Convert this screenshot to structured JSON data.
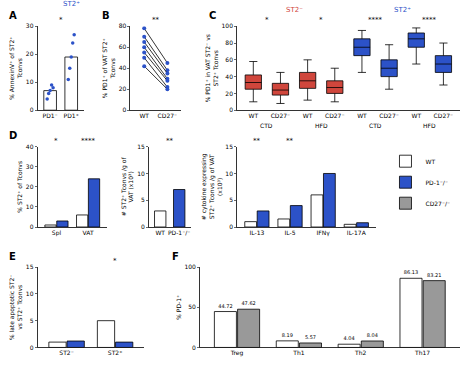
{
  "chart_data": [
    {
      "panel": "A",
      "type": "bar",
      "title": "ST2⁺",
      "categories": [
        "PD1⁻",
        "PD1⁺"
      ],
      "values": [
        7,
        19
      ],
      "colors": [
        "#ffffff",
        "#ffffff"
      ],
      "color": "#2c52c8",
      "points": [
        [
          4,
          6,
          7,
          9,
          8
        ],
        [
          11,
          15,
          19,
          24,
          27
        ]
      ],
      "ylabel": "% AnnexinV⁺ of ST2⁺ Tconvs",
      "ylim": [
        0,
        30
      ],
      "yticks": [
        0,
        10,
        20,
        30
      ],
      "significance": [
        {
          "between": [
            0,
            1
          ],
          "text": "*"
        }
      ]
    },
    {
      "panel": "B",
      "type": "paired",
      "categories": [
        "WT",
        "CD27⁻"
      ],
      "color": "#2c52c8",
      "pairs": [
        [
          78,
          45
        ],
        [
          70,
          38
        ],
        [
          65,
          35
        ],
        [
          60,
          30
        ],
        [
          55,
          28
        ],
        [
          50,
          22
        ],
        [
          42,
          20
        ]
      ],
      "ylabel": "% PD1⁺ of VAT ST2⁺ Tconvs",
      "ylim": [
        0,
        80
      ],
      "yticks": [
        0,
        20,
        40,
        60,
        80
      ],
      "significance": [
        {
          "between": [
            0,
            1
          ],
          "text": "**"
        }
      ]
    },
    {
      "panel": "C",
      "type": "box",
      "categories": [
        "WT",
        "CD27⁻",
        "WT",
        "CD27⁻",
        "WT",
        "CD27⁻",
        "WT",
        "CD27⁻"
      ],
      "colors": [
        "#d0463c",
        "#d0463c",
        "#d0463c",
        "#d0463c",
        "#2c52c8",
        "#2c52c8",
        "#2c52c8",
        "#2c52c8"
      ],
      "boxes": [
        {
          "lower": 10,
          "q1": 25,
          "median": 33,
          "q3": 42,
          "upper": 58
        },
        {
          "lower": 8,
          "q1": 18,
          "median": 24,
          "q3": 32,
          "upper": 45
        },
        {
          "lower": 12,
          "q1": 26,
          "median": 35,
          "q3": 45,
          "upper": 60
        },
        {
          "lower": 10,
          "q1": 20,
          "median": 27,
          "q3": 35,
          "upper": 50
        },
        {
          "lower": 45,
          "q1": 65,
          "median": 75,
          "q3": 85,
          "upper": 95
        },
        {
          "lower": 25,
          "q1": 40,
          "median": 50,
          "q3": 60,
          "upper": 78
        },
        {
          "lower": 55,
          "q1": 75,
          "median": 85,
          "q3": 92,
          "upper": 98
        },
        {
          "lower": 30,
          "q1": 45,
          "median": 55,
          "q3": 65,
          "upper": 80
        }
      ],
      "groups": [
        {
          "text": "CTD",
          "between": [
            0,
            1
          ]
        },
        {
          "text": "HFD",
          "between": [
            2,
            3
          ]
        },
        {
          "text": "CTD",
          "between": [
            4,
            5
          ]
        },
        {
          "text": "HFD",
          "between": [
            6,
            7
          ]
        }
      ],
      "headers": [
        {
          "text": "ST2⁻",
          "between": [
            0,
            3
          ]
        },
        {
          "text": "ST2⁺",
          "between": [
            4,
            7
          ]
        }
      ],
      "ylabel": "% PD1⁺ in VAT ST2⁻ vs ST2⁺ Tconvs",
      "ylim": [
        0,
        100
      ],
      "yticks": [
        0,
        20,
        40,
        60,
        80,
        100
      ],
      "significance": [
        {
          "between": [
            0,
            1
          ],
          "text": "*"
        },
        {
          "between": [
            2,
            3
          ],
          "text": "*"
        },
        {
          "between": [
            4,
            5
          ],
          "text": "****"
        },
        {
          "between": [
            6,
            7
          ],
          "text": "****"
        }
      ]
    },
    {
      "panel": "D",
      "type": "bar",
      "categories": [
        "Spl",
        "VAT"
      ],
      "series": [
        {
          "name": "WT",
          "color": "#ffffff",
          "values": [
            1,
            6
          ]
        },
        {
          "name": "PD-1⁻/⁻",
          "color": "#2c52c8",
          "values": [
            3,
            24
          ]
        }
      ],
      "ylabel": "% ST2⁺ of Tconvs",
      "ylim": [
        0,
        40
      ],
      "yticks": [
        0,
        10,
        20,
        30,
        40
      ],
      "significance": [
        {
          "between": [
            0,
            0
          ],
          "text": "*"
        },
        {
          "between": [
            1,
            1
          ],
          "text": "****"
        }
      ]
    },
    {
      "type": "bar",
      "categories": [
        "WT",
        "PD-1⁻/⁻"
      ],
      "values": [
        3,
        7
      ],
      "colors": [
        "#ffffff",
        "#2c52c8"
      ],
      "ylabel": "# ST2⁺ Tconvs /g of VAT (x10³)",
      "ylim": [
        0,
        15
      ],
      "yticks": [
        0,
        5,
        10,
        15
      ],
      "significance": [
        {
          "between": [
            0,
            1
          ],
          "text": "**"
        }
      ]
    },
    {
      "type": "bar",
      "categories": [
        "IL-13",
        "IL-5",
        "IFNγ",
        "IL-17A"
      ],
      "series": [
        {
          "name": "WT",
          "color": "#ffffff",
          "values": [
            1,
            1.5,
            6,
            0.5
          ]
        },
        {
          "name": "PD-1⁻/⁻",
          "color": "#2c52c8",
          "values": [
            3,
            4,
            10,
            0.8
          ]
        }
      ],
      "ylabel": "# cytokine expressing ST2⁺ Tconvs /g of VAT (x10³)",
      "ylim": [
        0,
        15
      ],
      "yticks": [
        0,
        5,
        10,
        15
      ],
      "legend": "right",
      "significance": [
        {
          "between": [
            0,
            0
          ],
          "text": "**"
        },
        {
          "between": [
            1,
            1
          ],
          "text": "**"
        }
      ]
    },
    {
      "panel": "E",
      "type": "bar",
      "categories": [
        "ST2⁻",
        "ST2⁺"
      ],
      "series": [
        {
          "name": "WT",
          "color": "#ffffff",
          "values": [
            1,
            5
          ]
        },
        {
          "name": "PD-1⁻/⁻",
          "color": "#2c52c8",
          "values": [
            1.2,
            1
          ]
        }
      ],
      "ylabel": "% late apoptotic ST2⁻ vs ST2⁺ Tconvs",
      "ylim": [
        0,
        15
      ],
      "yticks": [
        0,
        5,
        10,
        15
      ],
      "significance": [
        {
          "between": [
            1,
            1
          ],
          "text": "*"
        }
      ]
    },
    {
      "panel": "F",
      "type": "bar",
      "categories": [
        "Treg",
        "Th1",
        "Th2",
        "Th17"
      ],
      "series": [
        {
          "name": "WT",
          "color": "#ffffff",
          "values": [
            44.72,
            8.19,
            4.04,
            86.13
          ]
        },
        {
          "name": "CD27⁻/⁻",
          "color": "#999999",
          "values": [
            47.62,
            5.57,
            8.04,
            83.21
          ]
        }
      ],
      "ylabel": "% PD-1⁺",
      "ylim": [
        0,
        100
      ],
      "yticks": [
        0,
        50,
        100
      ],
      "data_labels": true
    }
  ]
}
